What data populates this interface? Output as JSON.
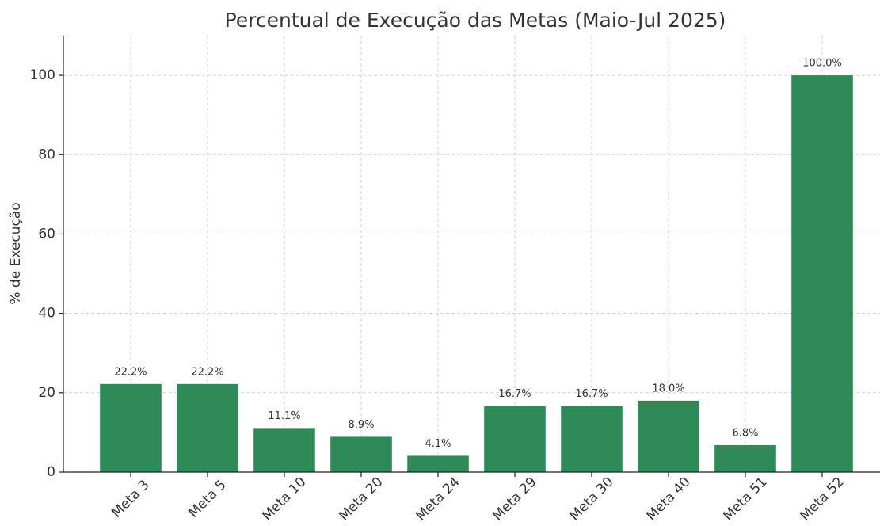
{
  "chart_data": {
    "type": "bar",
    "title": "Percentual de Execução das Metas (Maio-Jul 2025)",
    "y_label": "% de Execução",
    "categories": [
      "Meta 3",
      "Meta 5",
      "Meta 10",
      "Meta 20",
      "Meta 24",
      "Meta 29",
      "Meta 30",
      "Meta 40",
      "Meta 51",
      "Meta 52"
    ],
    "values": [
      22.2,
      22.2,
      11.1,
      8.9,
      4.1,
      16.7,
      16.7,
      18.0,
      6.8,
      100.0
    ],
    "value_labels": [
      "22.2%",
      "22.2%",
      "11.1%",
      "8.9%",
      "4.1%",
      "16.7%",
      "16.7%",
      "18.0%",
      "6.8%",
      "100.0%"
    ],
    "color": "#2e8b57",
    "ylim": [
      0,
      110
    ],
    "yticks": [
      0,
      20,
      40,
      60,
      80,
      100
    ],
    "grid": true
  }
}
